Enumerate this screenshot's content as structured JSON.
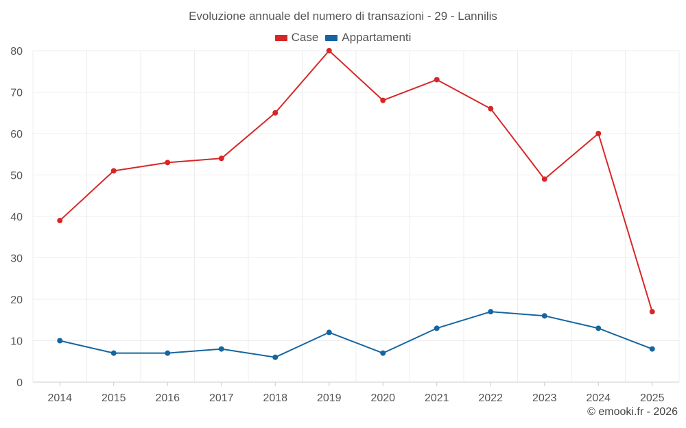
{
  "chart_data": {
    "type": "line",
    "title": "Evoluzione annuale del numero di transazioni - 29 - Lannilis",
    "categories": [
      "2014",
      "2015",
      "2016",
      "2017",
      "2018",
      "2019",
      "2020",
      "2021",
      "2022",
      "2023",
      "2024",
      "2025"
    ],
    "series": [
      {
        "name": "Case",
        "color": "#d62728",
        "values": [
          39,
          51,
          53,
          54,
          65,
          80,
          68,
          73,
          66,
          49,
          60,
          17
        ]
      },
      {
        "name": "Appartamenti",
        "color": "#1565a0",
        "values": [
          10,
          7,
          7,
          8,
          6,
          12,
          7,
          13,
          17,
          16,
          13,
          8
        ]
      }
    ],
    "ylim": [
      0,
      80
    ],
    "yticks": [
      0,
      10,
      20,
      30,
      40,
      50,
      60,
      70,
      80
    ],
    "xlabel": "",
    "ylabel": "",
    "grid": true,
    "legend_position": "top-center"
  },
  "legend": {
    "case_label": "Case",
    "case_color": "#d62728",
    "appartamenti_label": "Appartamenti",
    "appartamenti_color": "#1565a0"
  },
  "footer": {
    "credit": "© emooki.fr - 2026"
  }
}
